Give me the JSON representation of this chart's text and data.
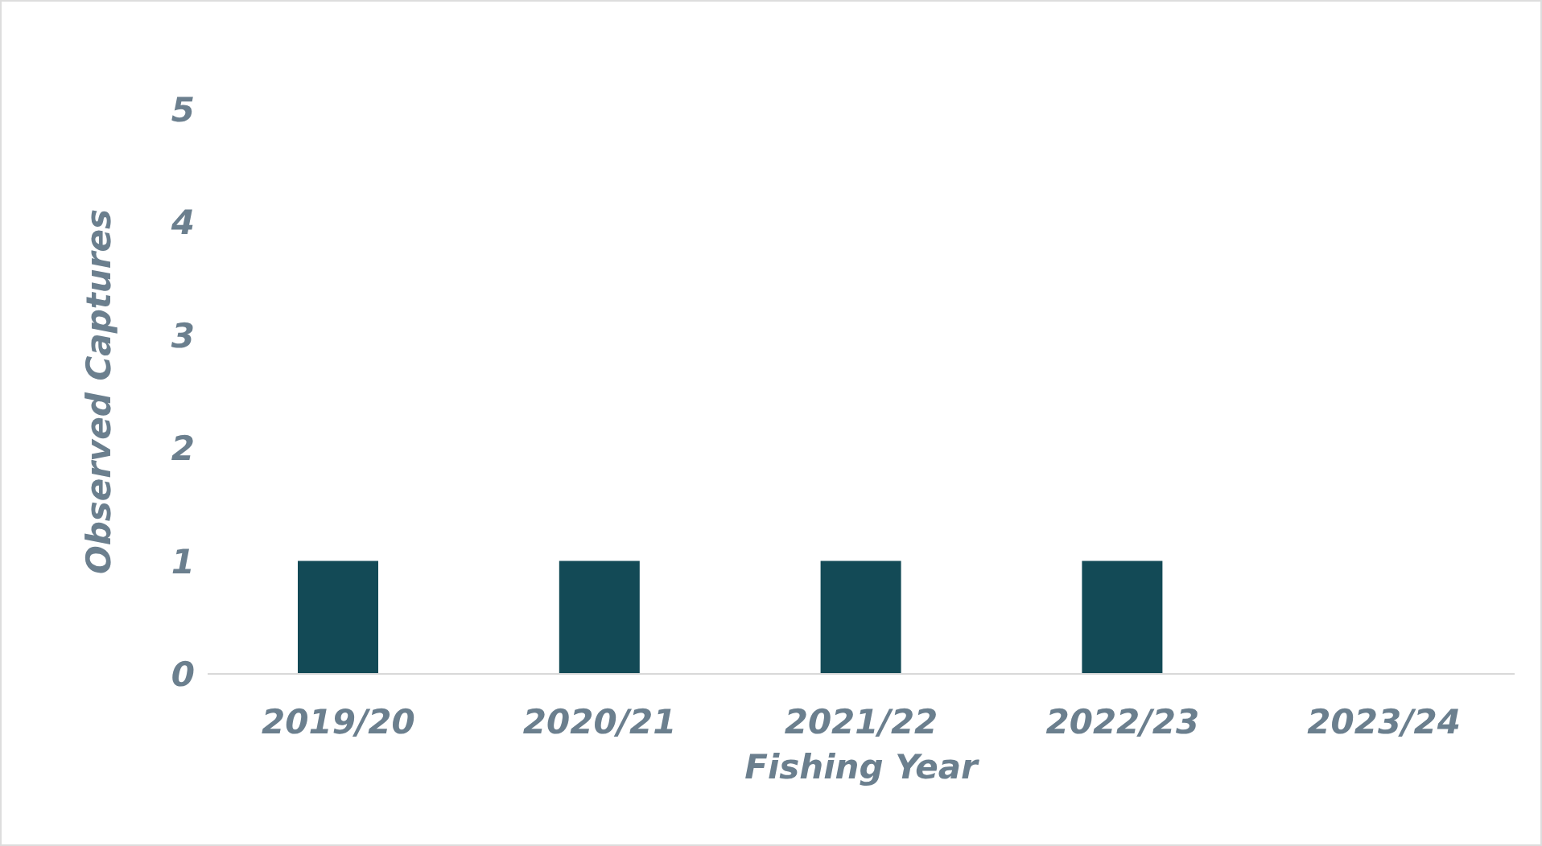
{
  "chart_data": {
    "type": "bar",
    "xlabel": "Fishing Year",
    "ylabel": "Observed Captures",
    "categories": [
      "2019/20",
      "2020/21",
      "2021/22",
      "2022/23",
      "2023/24"
    ],
    "values": [
      1,
      1,
      1,
      1,
      0
    ],
    "color": "#134a56",
    "ylim": [
      0,
      5
    ],
    "yticks": [
      0,
      1,
      2,
      3,
      4,
      5
    ],
    "grid": false
  }
}
